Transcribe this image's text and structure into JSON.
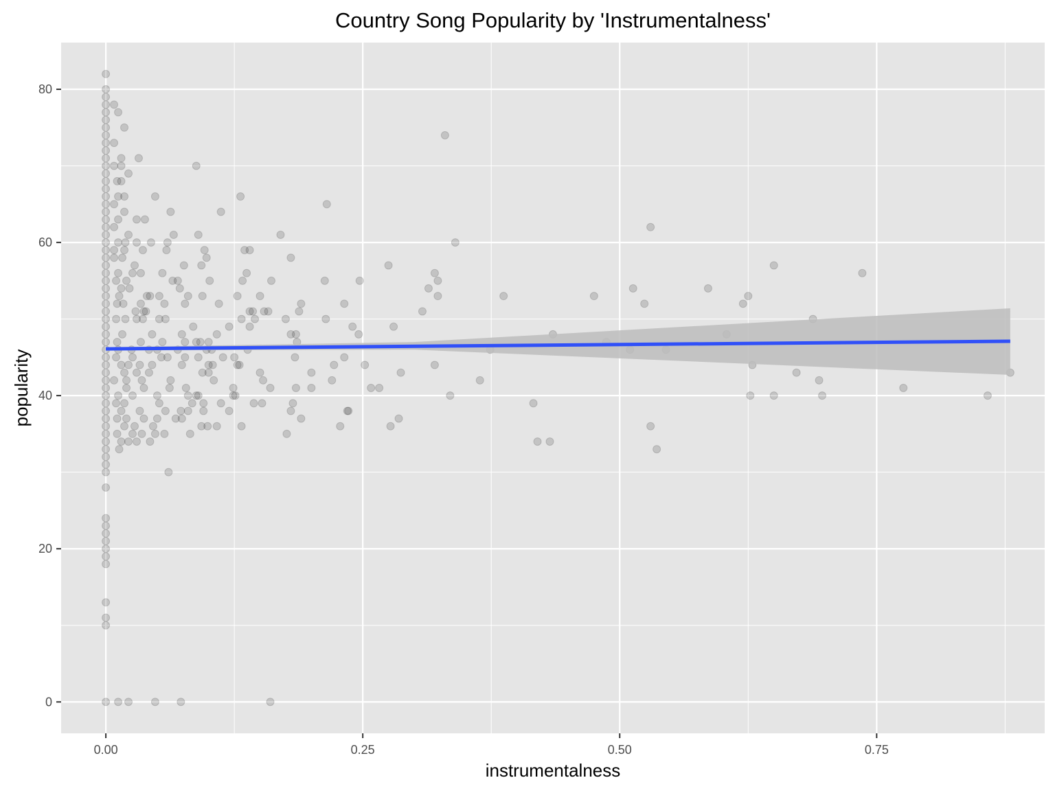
{
  "chart_data": {
    "type": "scatter",
    "title": "Country Song Popularity by 'Instrumentalness'",
    "xlabel": "instrumentalness",
    "ylabel": "popularity",
    "xlim": [
      -0.0435,
      0.9135
    ],
    "ylim": [
      -4.1,
      86.1
    ],
    "x_ticks": [
      0.0,
      0.25,
      0.5,
      0.75
    ],
    "x_tick_labels": [
      "0.00",
      "0.25",
      "0.50",
      "0.75"
    ],
    "y_ticks": [
      0,
      20,
      40,
      60,
      80
    ],
    "y_tick_labels": [
      "0",
      "20",
      "40",
      "60",
      "80"
    ],
    "grid": true,
    "legend": "none",
    "colors": {
      "panel": "#e5e5e5",
      "grid": "#ffffff",
      "points": "#000000",
      "trend_line": "#3050f8",
      "confidence_band": "#bdbdbd"
    },
    "point_opacity": 0.15,
    "trend_line": {
      "method": "linear",
      "x": [
        0.0,
        0.88
      ],
      "y": [
        46.1,
        47.1
      ]
    },
    "confidence_band": {
      "x": [
        0.0,
        0.3,
        0.88
      ],
      "lower": [
        45.9,
        46.0,
        42.7
      ],
      "upper": [
        46.3,
        47.0,
        51.4
      ]
    },
    "points": [
      [
        0,
        82
      ],
      [
        0,
        80
      ],
      [
        0,
        79
      ],
      [
        0,
        78
      ],
      [
        0,
        77
      ],
      [
        0,
        76
      ],
      [
        0,
        75
      ],
      [
        0,
        74
      ],
      [
        0,
        73
      ],
      [
        0,
        72
      ],
      [
        0,
        71
      ],
      [
        0,
        70
      ],
      [
        0,
        69
      ],
      [
        0,
        68
      ],
      [
        0,
        67
      ],
      [
        0,
        66
      ],
      [
        0,
        65
      ],
      [
        0,
        64
      ],
      [
        0,
        63
      ],
      [
        0,
        62
      ],
      [
        0,
        61
      ],
      [
        0,
        60
      ],
      [
        0,
        59
      ],
      [
        0,
        58
      ],
      [
        0,
        57
      ],
      [
        0,
        56
      ],
      [
        0,
        55
      ],
      [
        0,
        54
      ],
      [
        0,
        53
      ],
      [
        0,
        52
      ],
      [
        0,
        51
      ],
      [
        0,
        50
      ],
      [
        0,
        49
      ],
      [
        0,
        48
      ],
      [
        0,
        47
      ],
      [
        0,
        46
      ],
      [
        0,
        45
      ],
      [
        0,
        44
      ],
      [
        0,
        43
      ],
      [
        0,
        42
      ],
      [
        0,
        41
      ],
      [
        0,
        40
      ],
      [
        0,
        39
      ],
      [
        0,
        38
      ],
      [
        0,
        37
      ],
      [
        0,
        36
      ],
      [
        0,
        35
      ],
      [
        0,
        34
      ],
      [
        0,
        33
      ],
      [
        0,
        32
      ],
      [
        0,
        31
      ],
      [
        0,
        30
      ],
      [
        0,
        28
      ],
      [
        0,
        24
      ],
      [
        0,
        23
      ],
      [
        0,
        22
      ],
      [
        0,
        21
      ],
      [
        0,
        20
      ],
      [
        0,
        19
      ],
      [
        0,
        18
      ],
      [
        0,
        13
      ],
      [
        0,
        11
      ],
      [
        0,
        10
      ],
      [
        0,
        0
      ],
      [
        0.008,
        78
      ],
      [
        0.012,
        77
      ],
      [
        0.018,
        75
      ],
      [
        0.008,
        73
      ],
      [
        0.015,
        71
      ],
      [
        0.032,
        71
      ],
      [
        0.008,
        70
      ],
      [
        0.015,
        70
      ],
      [
        0.011,
        68
      ],
      [
        0.015,
        68
      ],
      [
        0.022,
        69
      ],
      [
        0.012,
        66
      ],
      [
        0.018,
        66
      ],
      [
        0.048,
        66
      ],
      [
        0.008,
        65
      ],
      [
        0.018,
        64
      ],
      [
        0.063,
        64
      ],
      [
        0.012,
        63
      ],
      [
        0.03,
        63
      ],
      [
        0.038,
        63
      ],
      [
        0.008,
        62
      ],
      [
        0.022,
        61
      ],
      [
        0.066,
        61
      ],
      [
        0.012,
        60
      ],
      [
        0.019,
        60
      ],
      [
        0.03,
        60
      ],
      [
        0.044,
        60
      ],
      [
        0.06,
        60
      ],
      [
        0.008,
        59
      ],
      [
        0.018,
        59
      ],
      [
        0.036,
        59
      ],
      [
        0.059,
        59
      ],
      [
        0.008,
        58
      ],
      [
        0.016,
        58
      ],
      [
        0.076,
        57
      ],
      [
        0.028,
        57
      ],
      [
        0.012,
        56
      ],
      [
        0.026,
        56
      ],
      [
        0.034,
        56
      ],
      [
        0.055,
        56
      ],
      [
        0.01,
        55
      ],
      [
        0.02,
        55
      ],
      [
        0.065,
        55
      ],
      [
        0.07,
        55
      ],
      [
        0.015,
        54
      ],
      [
        0.023,
        54
      ],
      [
        0.072,
        54
      ],
      [
        0.013,
        53
      ],
      [
        0.04,
        53
      ],
      [
        0.043,
        53
      ],
      [
        0.052,
        53
      ],
      [
        0.08,
        53
      ],
      [
        0.011,
        52
      ],
      [
        0.017,
        52
      ],
      [
        0.034,
        52
      ],
      [
        0.057,
        52
      ],
      [
        0.077,
        52
      ],
      [
        0.029,
        51
      ],
      [
        0.037,
        51
      ],
      [
        0.039,
        51
      ],
      [
        0.01,
        50
      ],
      [
        0.019,
        50
      ],
      [
        0.03,
        50
      ],
      [
        0.036,
        50
      ],
      [
        0.052,
        50
      ],
      [
        0.058,
        50
      ],
      [
        0.085,
        49
      ],
      [
        0.016,
        48
      ],
      [
        0.045,
        48
      ],
      [
        0.074,
        48
      ],
      [
        0.011,
        47
      ],
      [
        0.034,
        47
      ],
      [
        0.055,
        47
      ],
      [
        0.077,
        47
      ],
      [
        0.092,
        47
      ],
      [
        0.012,
        46
      ],
      [
        0.025,
        46
      ],
      [
        0.042,
        46
      ],
      [
        0.05,
        46
      ],
      [
        0.07,
        46
      ],
      [
        0.01,
        45
      ],
      [
        0.026,
        45
      ],
      [
        0.054,
        45
      ],
      [
        0.06,
        45
      ],
      [
        0.077,
        45
      ],
      [
        0.09,
        45
      ],
      [
        0.015,
        44
      ],
      [
        0.022,
        44
      ],
      [
        0.033,
        44
      ],
      [
        0.045,
        44
      ],
      [
        0.074,
        44
      ],
      [
        0.018,
        43
      ],
      [
        0.03,
        43
      ],
      [
        0.042,
        43
      ],
      [
        0.063,
        42
      ],
      [
        0.008,
        42
      ],
      [
        0.02,
        42
      ],
      [
        0.035,
        42
      ],
      [
        0.02,
        41
      ],
      [
        0.037,
        41
      ],
      [
        0.062,
        41
      ],
      [
        0.078,
        41
      ],
      [
        0.012,
        40
      ],
      [
        0.026,
        40
      ],
      [
        0.05,
        40
      ],
      [
        0.08,
        40
      ],
      [
        0.01,
        39
      ],
      [
        0.018,
        39
      ],
      [
        0.052,
        39
      ],
      [
        0.084,
        39
      ],
      [
        0.015,
        38
      ],
      [
        0.033,
        38
      ],
      [
        0.058,
        38
      ],
      [
        0.073,
        38
      ],
      [
        0.08,
        38
      ],
      [
        0.011,
        37
      ],
      [
        0.02,
        37
      ],
      [
        0.037,
        37
      ],
      [
        0.05,
        37
      ],
      [
        0.068,
        37
      ],
      [
        0.074,
        37
      ],
      [
        0.018,
        36
      ],
      [
        0.028,
        36
      ],
      [
        0.046,
        36
      ],
      [
        0.011,
        35
      ],
      [
        0.026,
        35
      ],
      [
        0.035,
        35
      ],
      [
        0.048,
        35
      ],
      [
        0.057,
        35
      ],
      [
        0.082,
        35
      ],
      [
        0.015,
        34
      ],
      [
        0.022,
        34
      ],
      [
        0.03,
        34
      ],
      [
        0.043,
        34
      ],
      [
        0.013,
        33
      ],
      [
        0.061,
        30
      ],
      [
        0.012,
        0
      ],
      [
        0.022,
        0
      ],
      [
        0.048,
        0
      ],
      [
        0.073,
        0
      ],
      [
        0.088,
        70
      ],
      [
        0.09,
        61
      ],
      [
        0.098,
        58
      ],
      [
        0.093,
        57
      ],
      [
        0.096,
        59
      ],
      [
        0.101,
        55
      ],
      [
        0.094,
        53
      ],
      [
        0.11,
        52
      ],
      [
        0.12,
        49
      ],
      [
        0.1,
        47
      ],
      [
        0.108,
        48
      ],
      [
        0.088,
        47
      ],
      [
        0.098,
        46
      ],
      [
        0.103,
        46
      ],
      [
        0.114,
        45
      ],
      [
        0.125,
        45
      ],
      [
        0.1,
        44
      ],
      [
        0.104,
        44
      ],
      [
        0.094,
        43
      ],
      [
        0.1,
        43
      ],
      [
        0.105,
        42
      ],
      [
        0.124,
        41
      ],
      [
        0.09,
        40
      ],
      [
        0.095,
        39
      ],
      [
        0.112,
        39
      ],
      [
        0.126,
        40
      ],
      [
        0.12,
        38
      ],
      [
        0.095,
        38
      ],
      [
        0.093,
        36
      ],
      [
        0.099,
        36
      ],
      [
        0.108,
        36
      ],
      [
        0.088,
        40
      ],
      [
        0.112,
        64
      ],
      [
        0.131,
        66
      ],
      [
        0.135,
        59
      ],
      [
        0.14,
        59
      ],
      [
        0.137,
        56
      ],
      [
        0.133,
        55
      ],
      [
        0.128,
        53
      ],
      [
        0.14,
        51
      ],
      [
        0.143,
        51
      ],
      [
        0.15,
        53
      ],
      [
        0.154,
        51
      ],
      [
        0.158,
        51
      ],
      [
        0.132,
        50
      ],
      [
        0.14,
        49
      ],
      [
        0.145,
        50
      ],
      [
        0.128,
        44
      ],
      [
        0.13,
        44
      ],
      [
        0.138,
        46
      ],
      [
        0.144,
        39
      ],
      [
        0.152,
        39
      ],
      [
        0.15,
        43
      ],
      [
        0.153,
        42
      ],
      [
        0.16,
        41
      ],
      [
        0.132,
        36
      ],
      [
        0.124,
        40
      ],
      [
        0.161,
        55
      ],
      [
        0.17,
        61
      ],
      [
        0.18,
        58
      ],
      [
        0.175,
        50
      ],
      [
        0.18,
        48
      ],
      [
        0.185,
        48
      ],
      [
        0.19,
        52
      ],
      [
        0.188,
        51
      ],
      [
        0.186,
        47
      ],
      [
        0.184,
        45
      ],
      [
        0.182,
        39
      ],
      [
        0.18,
        38
      ],
      [
        0.19,
        37
      ],
      [
        0.185,
        41
      ],
      [
        0.176,
        35
      ],
      [
        0.2,
        43
      ],
      [
        0.2,
        41
      ],
      [
        0.215,
        65
      ],
      [
        0.213,
        55
      ],
      [
        0.214,
        50
      ],
      [
        0.22,
        42
      ],
      [
        0.222,
        44
      ],
      [
        0.228,
        36
      ],
      [
        0.232,
        52
      ],
      [
        0.232,
        45
      ],
      [
        0.235,
        38
      ],
      [
        0.236,
        38
      ],
      [
        0.24,
        49
      ],
      [
        0.246,
        48
      ],
      [
        0.247,
        55
      ],
      [
        0.252,
        44
      ],
      [
        0.258,
        41
      ],
      [
        0.266,
        41
      ],
      [
        0.16,
        0
      ],
      [
        0.275,
        57
      ],
      [
        0.28,
        49
      ],
      [
        0.285,
        37
      ],
      [
        0.287,
        43
      ],
      [
        0.277,
        36
      ],
      [
        0.308,
        51
      ],
      [
        0.314,
        54
      ],
      [
        0.32,
        56
      ],
      [
        0.323,
        55
      ],
      [
        0.323,
        53
      ],
      [
        0.32,
        44
      ],
      [
        0.33,
        74
      ],
      [
        0.34,
        60
      ],
      [
        0.335,
        40
      ],
      [
        0.364,
        42
      ],
      [
        0.374,
        46
      ],
      [
        0.387,
        53
      ],
      [
        0.416,
        39
      ],
      [
        0.42,
        34
      ],
      [
        0.432,
        34
      ],
      [
        0.435,
        48
      ],
      [
        0.475,
        53
      ],
      [
        0.487,
        47
      ],
      [
        0.51,
        46
      ],
      [
        0.513,
        54
      ],
      [
        0.524,
        52
      ],
      [
        0.53,
        62
      ],
      [
        0.53,
        36
      ],
      [
        0.536,
        33
      ],
      [
        0.545,
        46
      ],
      [
        0.586,
        54
      ],
      [
        0.604,
        48
      ],
      [
        0.62,
        52
      ],
      [
        0.625,
        53
      ],
      [
        0.627,
        40
      ],
      [
        0.629,
        44
      ],
      [
        0.65,
        57
      ],
      [
        0.65,
        40
      ],
      [
        0.672,
        43
      ],
      [
        0.688,
        50
      ],
      [
        0.694,
        42
      ],
      [
        0.697,
        40
      ],
      [
        0.736,
        56
      ],
      [
        0.776,
        41
      ],
      [
        0.858,
        40
      ],
      [
        0.88,
        43
      ]
    ]
  }
}
